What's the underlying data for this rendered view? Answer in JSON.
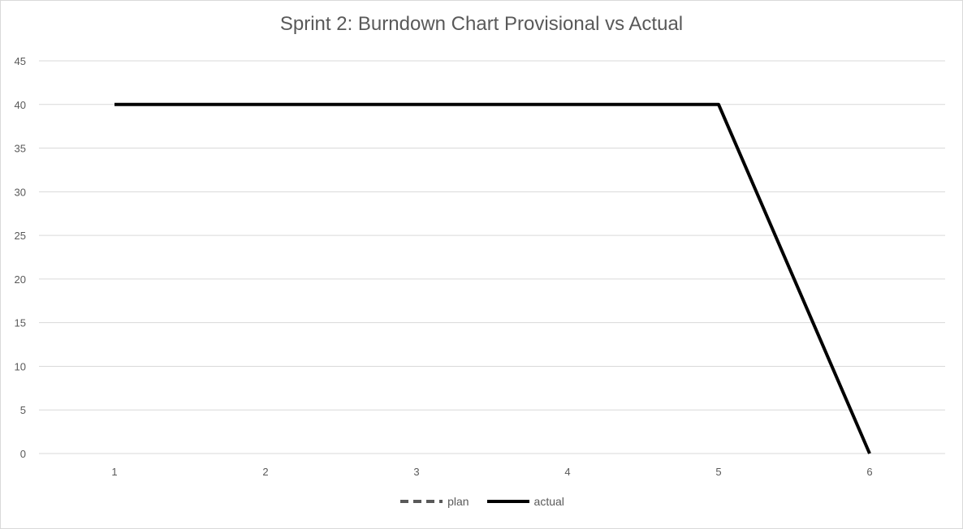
{
  "chart_data": {
    "type": "line",
    "title": "Sprint 2: Burndown Chart Provisional vs Actual",
    "xlabel": "",
    "ylabel": "",
    "categories": [
      "1",
      "2",
      "3",
      "4",
      "5",
      "6"
    ],
    "ylim": [
      0,
      45
    ],
    "yticks": [
      0,
      5,
      10,
      15,
      20,
      25,
      30,
      35,
      40,
      45
    ],
    "grid": true,
    "legend_position": "bottom",
    "series": [
      {
        "name": "plan",
        "values": [
          null,
          null,
          null,
          null,
          null,
          null
        ],
        "color": "#595959",
        "style": "dashed"
      },
      {
        "name": "actual",
        "values": [
          40,
          40,
          40,
          40,
          40,
          0
        ],
        "color": "#000000",
        "style": "solid"
      }
    ]
  }
}
